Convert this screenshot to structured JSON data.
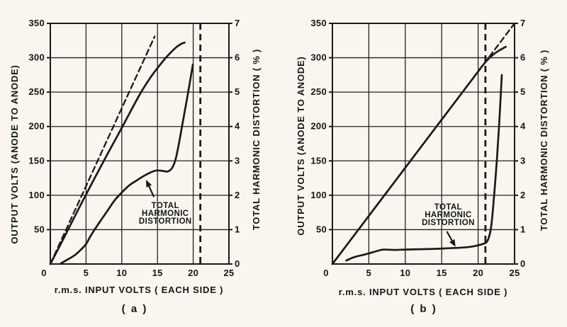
{
  "figure": {
    "background": "#f8f6ef",
    "ink": "#1a1a1a",
    "description": "Two scanned amplifier characteristic graphs: output volts and total harmonic distortion versus r.m.s. input volts"
  },
  "chart_data": [
    {
      "id": "a",
      "type": "line",
      "caption": "( a )",
      "xlabel": "r.m.s. INPUT VOLTS ( EACH SIDE )",
      "ylabel_left": "OUTPUT VOLTS (ANODE TO ANODE)",
      "ylabel_right": "TOTAL HARMONIC DISTORTION ( % )",
      "xlim": [
        0,
        25
      ],
      "ylim_left": [
        0,
        350
      ],
      "ylim_right": [
        0,
        7
      ],
      "x_ticks": [
        0,
        5,
        10,
        15,
        20,
        25
      ],
      "y_ticks_left": [
        50,
        100,
        150,
        200,
        250,
        300,
        350
      ],
      "y_ticks_right": [
        0,
        1,
        2,
        3,
        4,
        5,
        6,
        7
      ],
      "grid": true,
      "legend_position": "none",
      "series": [
        {
          "name": "ideal-gain-dashed-line",
          "axis": "left",
          "line": "dashed",
          "smooth": false,
          "points": [
            [
              0,
              0
            ],
            [
              14.6,
              331
            ]
          ]
        },
        {
          "name": "output-volts-curve",
          "axis": "left",
          "line": "solid",
          "smooth": true,
          "points": [
            [
              0,
              0
            ],
            [
              2,
              40
            ],
            [
              4,
              81
            ],
            [
              6,
              121
            ],
            [
              8,
              160
            ],
            [
              10,
              198
            ],
            [
              12,
              237
            ],
            [
              13,
              255
            ],
            [
              14,
              271
            ],
            [
              15,
              285
            ],
            [
              16,
              298
            ],
            [
              16.8,
              307
            ],
            [
              17.6,
              315
            ],
            [
              18.3,
              320
            ],
            [
              18.8,
              322
            ]
          ]
        },
        {
          "name": "total-harmonic-distortion-curve",
          "axis": "right",
          "line": "solid",
          "smooth": true,
          "points": [
            [
              1.5,
              0.02
            ],
            [
              2.5,
              0.14
            ],
            [
              3.5,
              0.27
            ],
            [
              4.3,
              0.42
            ],
            [
              5,
              0.58
            ],
            [
              5.6,
              0.8
            ],
            [
              6.2,
              1.0
            ],
            [
              7,
              1.25
            ],
            [
              8,
              1.55
            ],
            [
              9,
              1.85
            ],
            [
              10,
              2.08
            ],
            [
              11,
              2.28
            ],
            [
              12,
              2.42
            ],
            [
              13,
              2.55
            ],
            [
              14,
              2.66
            ],
            [
              14.8,
              2.72
            ],
            [
              15.7,
              2.71
            ],
            [
              16.4,
              2.69
            ],
            [
              17,
              2.78
            ],
            [
              17.5,
              3.02
            ],
            [
              18,
              3.5
            ],
            [
              18.5,
              4.08
            ],
            [
              19,
              4.65
            ],
            [
              19.5,
              5.25
            ],
            [
              19.95,
              5.8
            ]
          ]
        },
        {
          "name": "overload-input-dashed-marker",
          "axis": "x",
          "line": "dashed-vertical",
          "x": 21.0
        }
      ],
      "annotation": {
        "lines": [
          "TOTAL",
          "HARMONIC",
          "DISTORTION"
        ],
        "x": 16.1,
        "y_right": 1.48,
        "arrow": {
          "from": [
            14.5,
            1.95
          ],
          "to": [
            13.4,
            2.45
          ]
        }
      }
    },
    {
      "id": "b",
      "type": "line",
      "caption": "( b )",
      "xlabel": "r.m.s. INPUT VOLTS ( EACH SIDE )",
      "ylabel_left": "OUTPUT VOLTS (ANODE TO ANODE)",
      "ylabel_right": "TOTAL HARMONIC DISTORTION ( % )",
      "xlim": [
        0,
        25
      ],
      "ylim_left": [
        0,
        350
      ],
      "ylim_right": [
        0,
        7
      ],
      "x_ticks": [
        0,
        5,
        10,
        15,
        20,
        25
      ],
      "y_ticks_left": [
        50,
        100,
        150,
        200,
        250,
        300,
        350
      ],
      "y_ticks_right": [
        0,
        1,
        2,
        3,
        4,
        5,
        6,
        7
      ],
      "grid": true,
      "legend_position": "none",
      "series": [
        {
          "name": "ideal-gain-dashed-line",
          "axis": "left",
          "line": "dashed",
          "smooth": false,
          "points": [
            [
              20,
              280
            ],
            [
              25,
              350
            ]
          ]
        },
        {
          "name": "output-volts-curve",
          "axis": "left",
          "line": "solid",
          "smooth": true,
          "points": [
            [
              0,
              0
            ],
            [
              5,
              70
            ],
            [
              10,
              140
            ],
            [
              15,
              210
            ],
            [
              19.5,
              273
            ],
            [
              20.5,
              287
            ],
            [
              21.3,
              297
            ],
            [
              22,
              304
            ],
            [
              22.8,
              310
            ],
            [
              23.8,
              316
            ]
          ]
        },
        {
          "name": "total-harmonic-distortion-curve",
          "axis": "right",
          "line": "solid",
          "smooth": true,
          "points": [
            [
              1.9,
              0.1
            ],
            [
              3,
              0.2
            ],
            [
              4.5,
              0.28
            ],
            [
              6,
              0.37
            ],
            [
              7,
              0.42
            ],
            [
              8.5,
              0.41
            ],
            [
              10,
              0.42
            ],
            [
              12,
              0.43
            ],
            [
              14,
              0.44
            ],
            [
              16,
              0.46
            ],
            [
              18,
              0.48
            ],
            [
              19.5,
              0.52
            ],
            [
              20.6,
              0.58
            ],
            [
              21.3,
              0.68
            ],
            [
              21.8,
              1.1
            ],
            [
              22.2,
              2.0
            ],
            [
              22.6,
              3.1
            ],
            [
              22.9,
              4.1
            ],
            [
              23.1,
              4.9
            ],
            [
              23.25,
              5.5
            ]
          ]
        },
        {
          "name": "overload-input-dashed-marker",
          "axis": "x",
          "line": "dashed-vertical",
          "x": 21.0
        }
      ],
      "annotation": {
        "lines": [
          "TOTAL",
          "HARMONIC",
          "DISTORTION"
        ],
        "x": 15.9,
        "y_right": 1.44,
        "arrow": {
          "from": [
            15.7,
            0.95
          ],
          "to": [
            16.9,
            0.5
          ]
        }
      }
    }
  ]
}
